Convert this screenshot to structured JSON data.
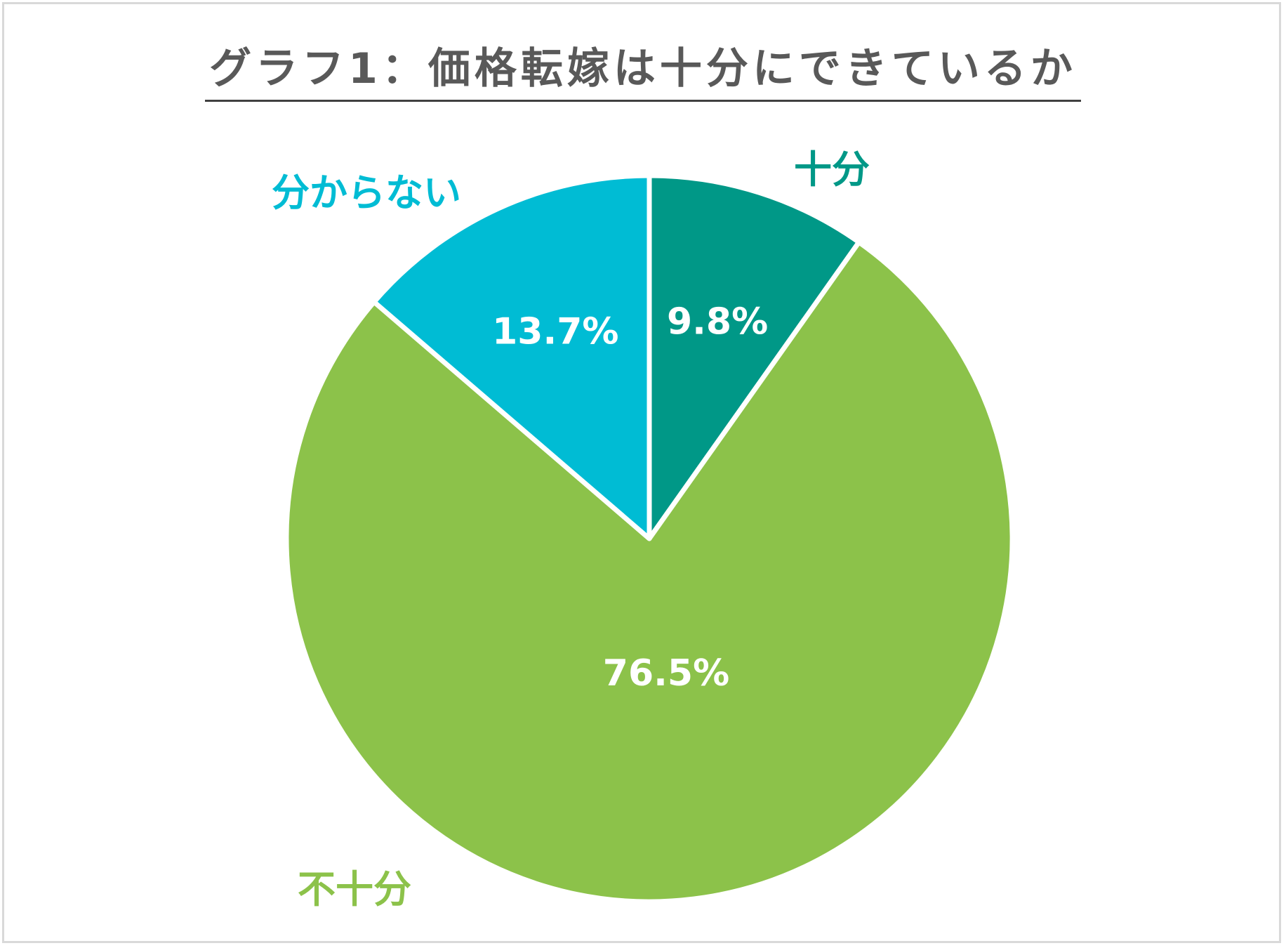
{
  "chart_data": {
    "type": "pie",
    "title": "グラフ1：価格転嫁は十分にできているか",
    "categories": [
      "十分",
      "不十分",
      "分からない"
    ],
    "values": [
      9.8,
      76.5,
      13.7
    ],
    "value_labels": [
      "9.8%",
      "76.5%",
      "13.7%"
    ],
    "colors": [
      "#009887",
      "#8cc24a",
      "#00bcd4"
    ],
    "start_angle": "12 o'clock",
    "direction": "clockwise",
    "legend": "none"
  }
}
